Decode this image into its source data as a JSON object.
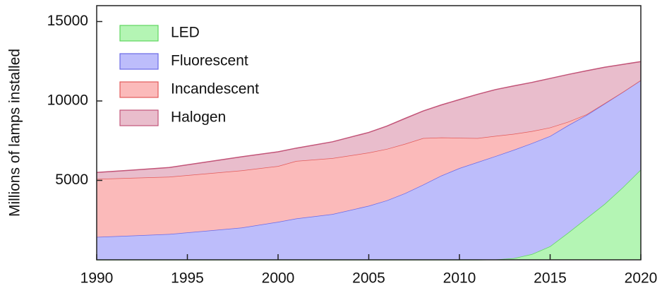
{
  "chart_data": {
    "type": "stacked_area",
    "y_label": "Millions of lamps installed",
    "x": [
      1990,
      1992,
      1994,
      1996,
      1998,
      2000,
      2001,
      2003,
      2005,
      2006,
      2007,
      2008,
      2009,
      2010,
      2011,
      2012,
      2013,
      2014,
      2015,
      2016,
      2017,
      2018,
      2019,
      2020
    ],
    "series": [
      {
        "name": "LED",
        "color": "#b4f5b4",
        "line_color": "#5fd65f",
        "values": [
          0,
          0,
          0,
          0,
          0,
          0,
          0,
          0,
          0,
          0,
          0,
          0,
          0,
          0,
          0,
          20,
          100,
          360,
          850,
          1710,
          2610,
          3510,
          4550,
          5680
        ]
      },
      {
        "name": "Fluorescent",
        "color": "#bdbdfb",
        "line_color": "#6a6ae6",
        "values": [
          1440,
          1530,
          1620,
          1820,
          2030,
          2390,
          2600,
          2880,
          3400,
          3740,
          4190,
          4730,
          5300,
          5770,
          6150,
          6510,
          6820,
          6980,
          6940,
          6760,
          6490,
          6310,
          6000,
          5620
        ]
      },
      {
        "name": "Incandescent",
        "color": "#fbbaba",
        "line_color": "#e35a5a",
        "values": [
          3650,
          3630,
          3610,
          3610,
          3600,
          3510,
          3620,
          3520,
          3350,
          3240,
          3110,
          2930,
          2400,
          1910,
          1510,
          1270,
          1010,
          760,
          540,
          220,
          50,
          30,
          10,
          10
        ]
      },
      {
        "name": "Halogen",
        "color": "#e9bdcc",
        "line_color": "#c25478",
        "values": [
          410,
          490,
          580,
          720,
          860,
          900,
          810,
          1030,
          1270,
          1440,
          1600,
          1710,
          2050,
          2410,
          2760,
          2920,
          3020,
          3070,
          3090,
          2980,
          2750,
          2270,
          1740,
          1170
        ]
      }
    ],
    "xlim": [
      1990,
      2020
    ],
    "xticks": [
      1990,
      1995,
      2000,
      2005,
      2010,
      2015,
      2020
    ],
    "ylim": [
      0,
      16000
    ],
    "yticks": [
      5000,
      10000,
      15000
    ],
    "legend": "upper left"
  }
}
